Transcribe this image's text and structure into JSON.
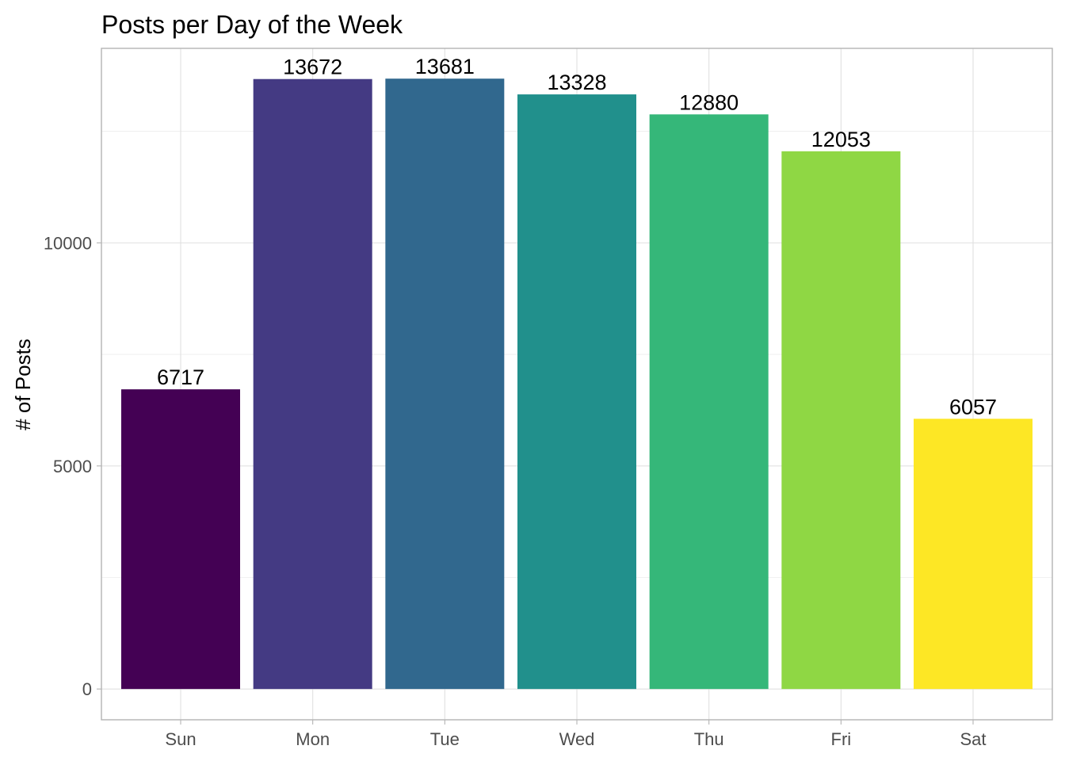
{
  "chart_data": {
    "type": "bar",
    "title": "Posts per Day of the Week",
    "xlabel": "",
    "ylabel": "# of Posts",
    "categories": [
      "Sun",
      "Mon",
      "Tue",
      "Wed",
      "Thu",
      "Fri",
      "Sat"
    ],
    "values": [
      6717,
      13672,
      13681,
      13328,
      12880,
      12053,
      6057
    ],
    "value_labels": [
      "6717",
      "13672",
      "13681",
      "13328",
      "12880",
      "12053",
      "6057"
    ],
    "colors": [
      "#440154",
      "#443A83",
      "#31688E",
      "#21908C",
      "#35B779",
      "#8FD744",
      "#FDE725"
    ],
    "ylim": [
      -690,
      14360
    ],
    "yticks": [
      0,
      5000,
      10000
    ],
    "ytick_labels": [
      "0",
      "5000",
      "10000"
    ],
    "grid": true,
    "legend": "none"
  }
}
